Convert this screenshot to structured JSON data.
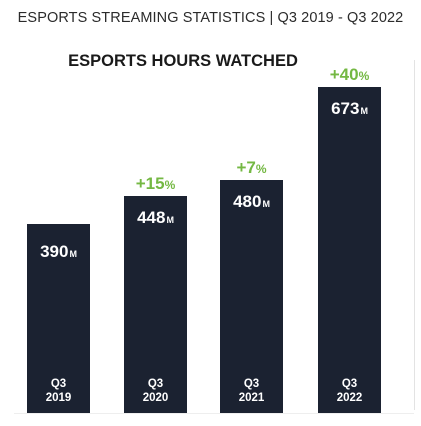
{
  "header": {
    "page_title": "ESPORTS STREAMING STATISTICS | Q3 2019 - Q3 2022"
  },
  "colors": {
    "bar": "#1b2231",
    "growth": "#74b843",
    "text": "#ffffff"
  },
  "chart_data": {
    "type": "bar",
    "title": "ESPORTS HOURS WATCHED",
    "unit": "M",
    "xlabel": "",
    "ylabel": "",
    "ylim": [
      0,
      673
    ],
    "categories": [
      {
        "line1": "Q3",
        "line2": "2019"
      },
      {
        "line1": "Q3",
        "line2": "2020"
      },
      {
        "line1": "Q3",
        "line2": "2021"
      },
      {
        "line1": "Q3",
        "line2": "2022"
      }
    ],
    "values": [
      390,
      448,
      480,
      673
    ],
    "value_labels": [
      "390",
      "448",
      "480",
      "673"
    ],
    "growth_labels": [
      "",
      "+15",
      "+7",
      "+40"
    ],
    "growth_suffix": "%"
  }
}
